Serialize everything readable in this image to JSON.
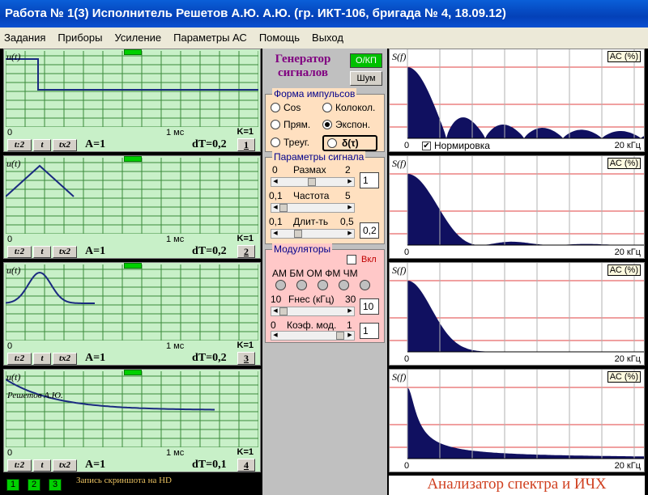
{
  "window": {
    "title": "Работа № 1(3)  Исполнитель Решетов А.Ю.   А.Ю.  (гр.  ИКТ-106, бригада № 4, 18.09.12)"
  },
  "menu": [
    "Задания",
    "Приборы",
    "Усиление",
    "Параметры АС",
    "Помощь",
    "Выход"
  ],
  "oscilloscopes": [
    {
      "ylabel": "u(t)",
      "zero": "0",
      "time_label": "1 мс",
      "k": "K=1",
      "btn_div2": "t:2",
      "btn_t": "t",
      "btn_x2": "tx2",
      "amp": "A=1",
      "dt": "dT=0,2",
      "num": "1",
      "overlay": "",
      "shape": "step"
    },
    {
      "ylabel": "u(t)",
      "zero": "0",
      "time_label": "1 мс",
      "k": "K=1",
      "btn_div2": "t:2",
      "btn_t": "t",
      "btn_x2": "tx2",
      "amp": "A=1",
      "dt": "dT=0,2",
      "num": "2",
      "overlay": "",
      "shape": "triangle"
    },
    {
      "ylabel": "u(t)",
      "zero": "0",
      "time_label": "1 мс",
      "k": "K=1",
      "btn_div2": "t:2",
      "btn_t": "t",
      "btn_x2": "tx2",
      "amp": "A=1",
      "dt": "dT=0,2",
      "num": "3",
      "overlay": "",
      "shape": "gauss"
    },
    {
      "ylabel": "u(t)",
      "zero": "0",
      "time_label": "1 мс",
      "k": "K=1",
      "btn_div2": "t:2",
      "btn_t": "t",
      "btn_x2": "tx2",
      "amp": "A=1",
      "dt": "dT=0,1",
      "num": "4",
      "overlay": "Решетов А.Ю.",
      "shape": "exp"
    }
  ],
  "generator": {
    "title_line1": "Генератор",
    "title_line2": "сигналов",
    "okp": "О/КП",
    "noise": "Шум",
    "shape_group": "Форма  импульсов",
    "shapes": {
      "cos": "Cos",
      "bell": "Колокол.",
      "rect": "Прям.",
      "exp": "Экспон.",
      "tri": "Треуг.",
      "delta": "δ(τ)"
    },
    "selected_shape": "exp",
    "params_group": "Параметры сигнала",
    "range": {
      "min": "0",
      "label": "Размах",
      "max": "2",
      "value": "1",
      "level": 0.5
    },
    "freq": {
      "min": "0,1",
      "label": "Частота",
      "max": "5",
      "level": 0.0
    },
    "dur": {
      "min": "0,1",
      "label": "Длит-ть",
      "max": "0,5",
      "value": "0,2",
      "level": 0.25
    },
    "mod_group": "Модуляторы",
    "mod_on": "Вкл",
    "mod_labels": "АМ БМ ОМ ФМ ЧМ",
    "fnes": {
      "min": "10",
      "label": "Fнес (кГц)",
      "max": "30",
      "value": "10",
      "level": 0.0
    },
    "kmod": {
      "min": "0",
      "label": "Коэф. мод.",
      "max": "1",
      "value": "1",
      "level": 1.0
    }
  },
  "spectra": [
    {
      "ylabel": "S(f)",
      "ac": "АС (%)",
      "zero": "0",
      "khz": "20 кГц",
      "norm": "Нормировка",
      "norm_checked": "✔",
      "shape": "sinc"
    },
    {
      "ylabel": "S(f)",
      "ac": "АС (%)",
      "zero": "0",
      "khz": "20 кГц",
      "norm": "",
      "norm_checked": "",
      "shape": "sinc2"
    },
    {
      "ylabel": "S(f)",
      "ac": "АС (%)",
      "zero": "0",
      "khz": "20 кГц",
      "norm": "",
      "norm_checked": "",
      "shape": "gauss"
    },
    {
      "ylabel": "S(f)",
      "ac": "АС (%)",
      "zero": "0",
      "khz": "20 кГц",
      "norm": "",
      "norm_checked": "",
      "shape": "lorentz"
    }
  ],
  "footer": {
    "btn1": "1",
    "btn2": "2",
    "btn3": "3",
    "hd_text": "Запись скриншота на HD",
    "analyzer": "Анализатор спектра и ИЧХ"
  },
  "colors": {
    "osc_bg": "#c8f0c8",
    "trace": "#1a2a80",
    "spec_fill": "#101060",
    "grid_red": "#e04040",
    "grid_green": "#3a8a3a"
  }
}
